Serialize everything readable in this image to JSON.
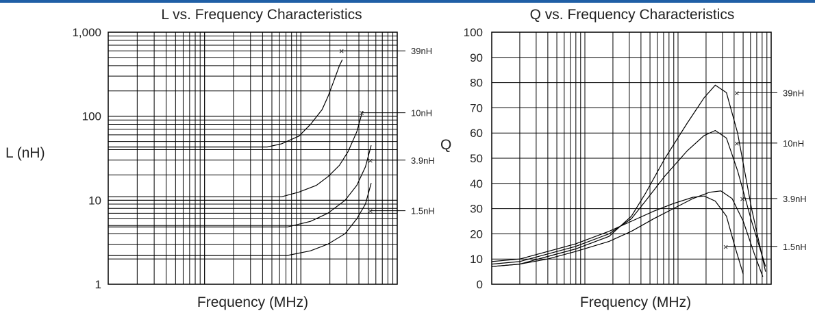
{
  "colors": {
    "accent_bar": "#1f5fa6",
    "ink": "#000000"
  },
  "chart_data": [
    {
      "type": "line",
      "title": "L vs. Frequency Characteristics",
      "xlabel": "Frequency (MHz)",
      "ylabel": "L (nH)",
      "yscale": "log",
      "ylim": [
        1,
        1000
      ],
      "yticks": [
        "1",
        "10",
        "100",
        "1,000"
      ],
      "xscale": "log",
      "xlim_decades": 3,
      "grid": true,
      "legend": "labels with leader lines at right",
      "series": [
        {
          "name": "39nH",
          "label_y": 600,
          "x": [
            0.0,
            0.55,
            0.6,
            0.66,
            0.7,
            0.74,
            0.76,
            0.78,
            0.8,
            0.81
          ],
          "y": [
            43,
            43,
            47,
            58,
            80,
            120,
            170,
            260,
            400,
            470
          ]
        },
        {
          "name": "10nH",
          "label_y": 110,
          "x": [
            0.0,
            0.6,
            0.66,
            0.72,
            0.76,
            0.8,
            0.83,
            0.86,
            0.88
          ],
          "y": [
            11,
            11,
            12.5,
            15,
            19,
            26,
            38,
            65,
            115
          ]
        },
        {
          "name": "3.9nH",
          "label_y": 30,
          "x": [
            0.0,
            0.62,
            0.7,
            0.76,
            0.82,
            0.86,
            0.89,
            0.91
          ],
          "y": [
            4.8,
            4.8,
            5.6,
            7,
            10,
            15,
            25,
            45
          ]
        },
        {
          "name": "1.5nH",
          "label_y": 7.5,
          "x": [
            0.0,
            0.62,
            0.7,
            0.76,
            0.82,
            0.86,
            0.89,
            0.91
          ],
          "y": [
            2.2,
            2.2,
            2.5,
            3,
            4,
            6,
            9,
            16
          ]
        }
      ]
    },
    {
      "type": "line",
      "title": "Q vs. Frequency Characteristics",
      "xlabel": "Frequency (MHz)",
      "ylabel": "Q",
      "yscale": "linear",
      "ylim": [
        0,
        100
      ],
      "yticks": [
        "0",
        "10",
        "20",
        "30",
        "40",
        "50",
        "60",
        "70",
        "80",
        "90",
        "100"
      ],
      "xscale": "log",
      "xlim_decades": 3,
      "grid": true,
      "legend": "labels with leader lines at right",
      "series": [
        {
          "name": "39nH",
          "label_y": 76,
          "x": [
            0.0,
            0.1,
            0.2,
            0.3,
            0.42,
            0.5,
            0.55,
            0.62,
            0.7,
            0.76,
            0.8,
            0.84,
            0.88,
            0.93,
            0.98
          ],
          "y": [
            7,
            8,
            11,
            14,
            19,
            27,
            36,
            50,
            64,
            74,
            79,
            76,
            60,
            30,
            5
          ]
        },
        {
          "name": "10nH",
          "label_y": 56,
          "x": [
            0.0,
            0.1,
            0.2,
            0.3,
            0.42,
            0.5,
            0.55,
            0.62,
            0.7,
            0.76,
            0.8,
            0.84,
            0.88,
            0.93,
            0.98
          ],
          "y": [
            8,
            9,
            12,
            15,
            20,
            26,
            33,
            43,
            53,
            59,
            61,
            58,
            45,
            25,
            7
          ]
        },
        {
          "name": "3.9nH",
          "label_y": 34,
          "x": [
            0.0,
            0.1,
            0.2,
            0.3,
            0.42,
            0.5,
            0.58,
            0.65,
            0.72,
            0.78,
            0.82,
            0.86,
            0.9,
            0.94,
            0.97
          ],
          "y": [
            7,
            8,
            10,
            13,
            17,
            21,
            26,
            30,
            34,
            36.5,
            37,
            34,
            25,
            12,
            3
          ]
        },
        {
          "name": "1.5nH",
          "label_y": 15,
          "x": [
            0.0,
            0.1,
            0.2,
            0.3,
            0.42,
            0.5,
            0.58,
            0.65,
            0.72,
            0.76,
            0.8,
            0.84,
            0.87,
            0.9
          ],
          "y": [
            9,
            10,
            13,
            16,
            21,
            25,
            29,
            32,
            34.5,
            35,
            33,
            27,
            15,
            4
          ]
        }
      ]
    }
  ]
}
